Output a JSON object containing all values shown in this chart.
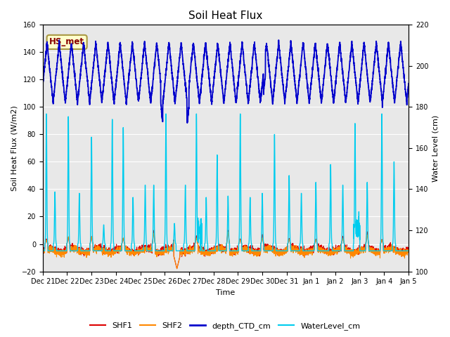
{
  "title": "Soil Heat Flux",
  "ylabel_left": "Soil Heat Flux (W/m2)",
  "ylabel_right": "Water Level (cm)",
  "xlabel": "Time",
  "ylim_left": [
    -20,
    160
  ],
  "ylim_right": [
    100,
    220
  ],
  "annotation_text": "HS_met",
  "annotation_box_facecolor": "#ffffcc",
  "annotation_box_edgecolor": "#aa9944",
  "annotation_text_color": "#880000",
  "background_color": "#ffffff",
  "plot_bg_color": "#e8e8e8",
  "grid_color": "#ffffff",
  "legend_labels": [
    "SHF1",
    "SHF2",
    "depth_CTD_cm",
    "WaterLevel_cm"
  ],
  "legend_colors": [
    "#dd0000",
    "#ff8800",
    "#0000cc",
    "#00ccee"
  ],
  "n_days": 15,
  "x_tick_labels": [
    "Dec 21",
    "Dec 22",
    "Dec 23",
    "Dec 24",
    "Dec 25",
    "Dec 26",
    "Dec 27",
    "Dec 28",
    "Dec 29",
    "Dec 30",
    "Dec 31",
    "Jan 1",
    "Jan 2",
    "Jan 3",
    "Jan 4",
    "Jan 5"
  ]
}
